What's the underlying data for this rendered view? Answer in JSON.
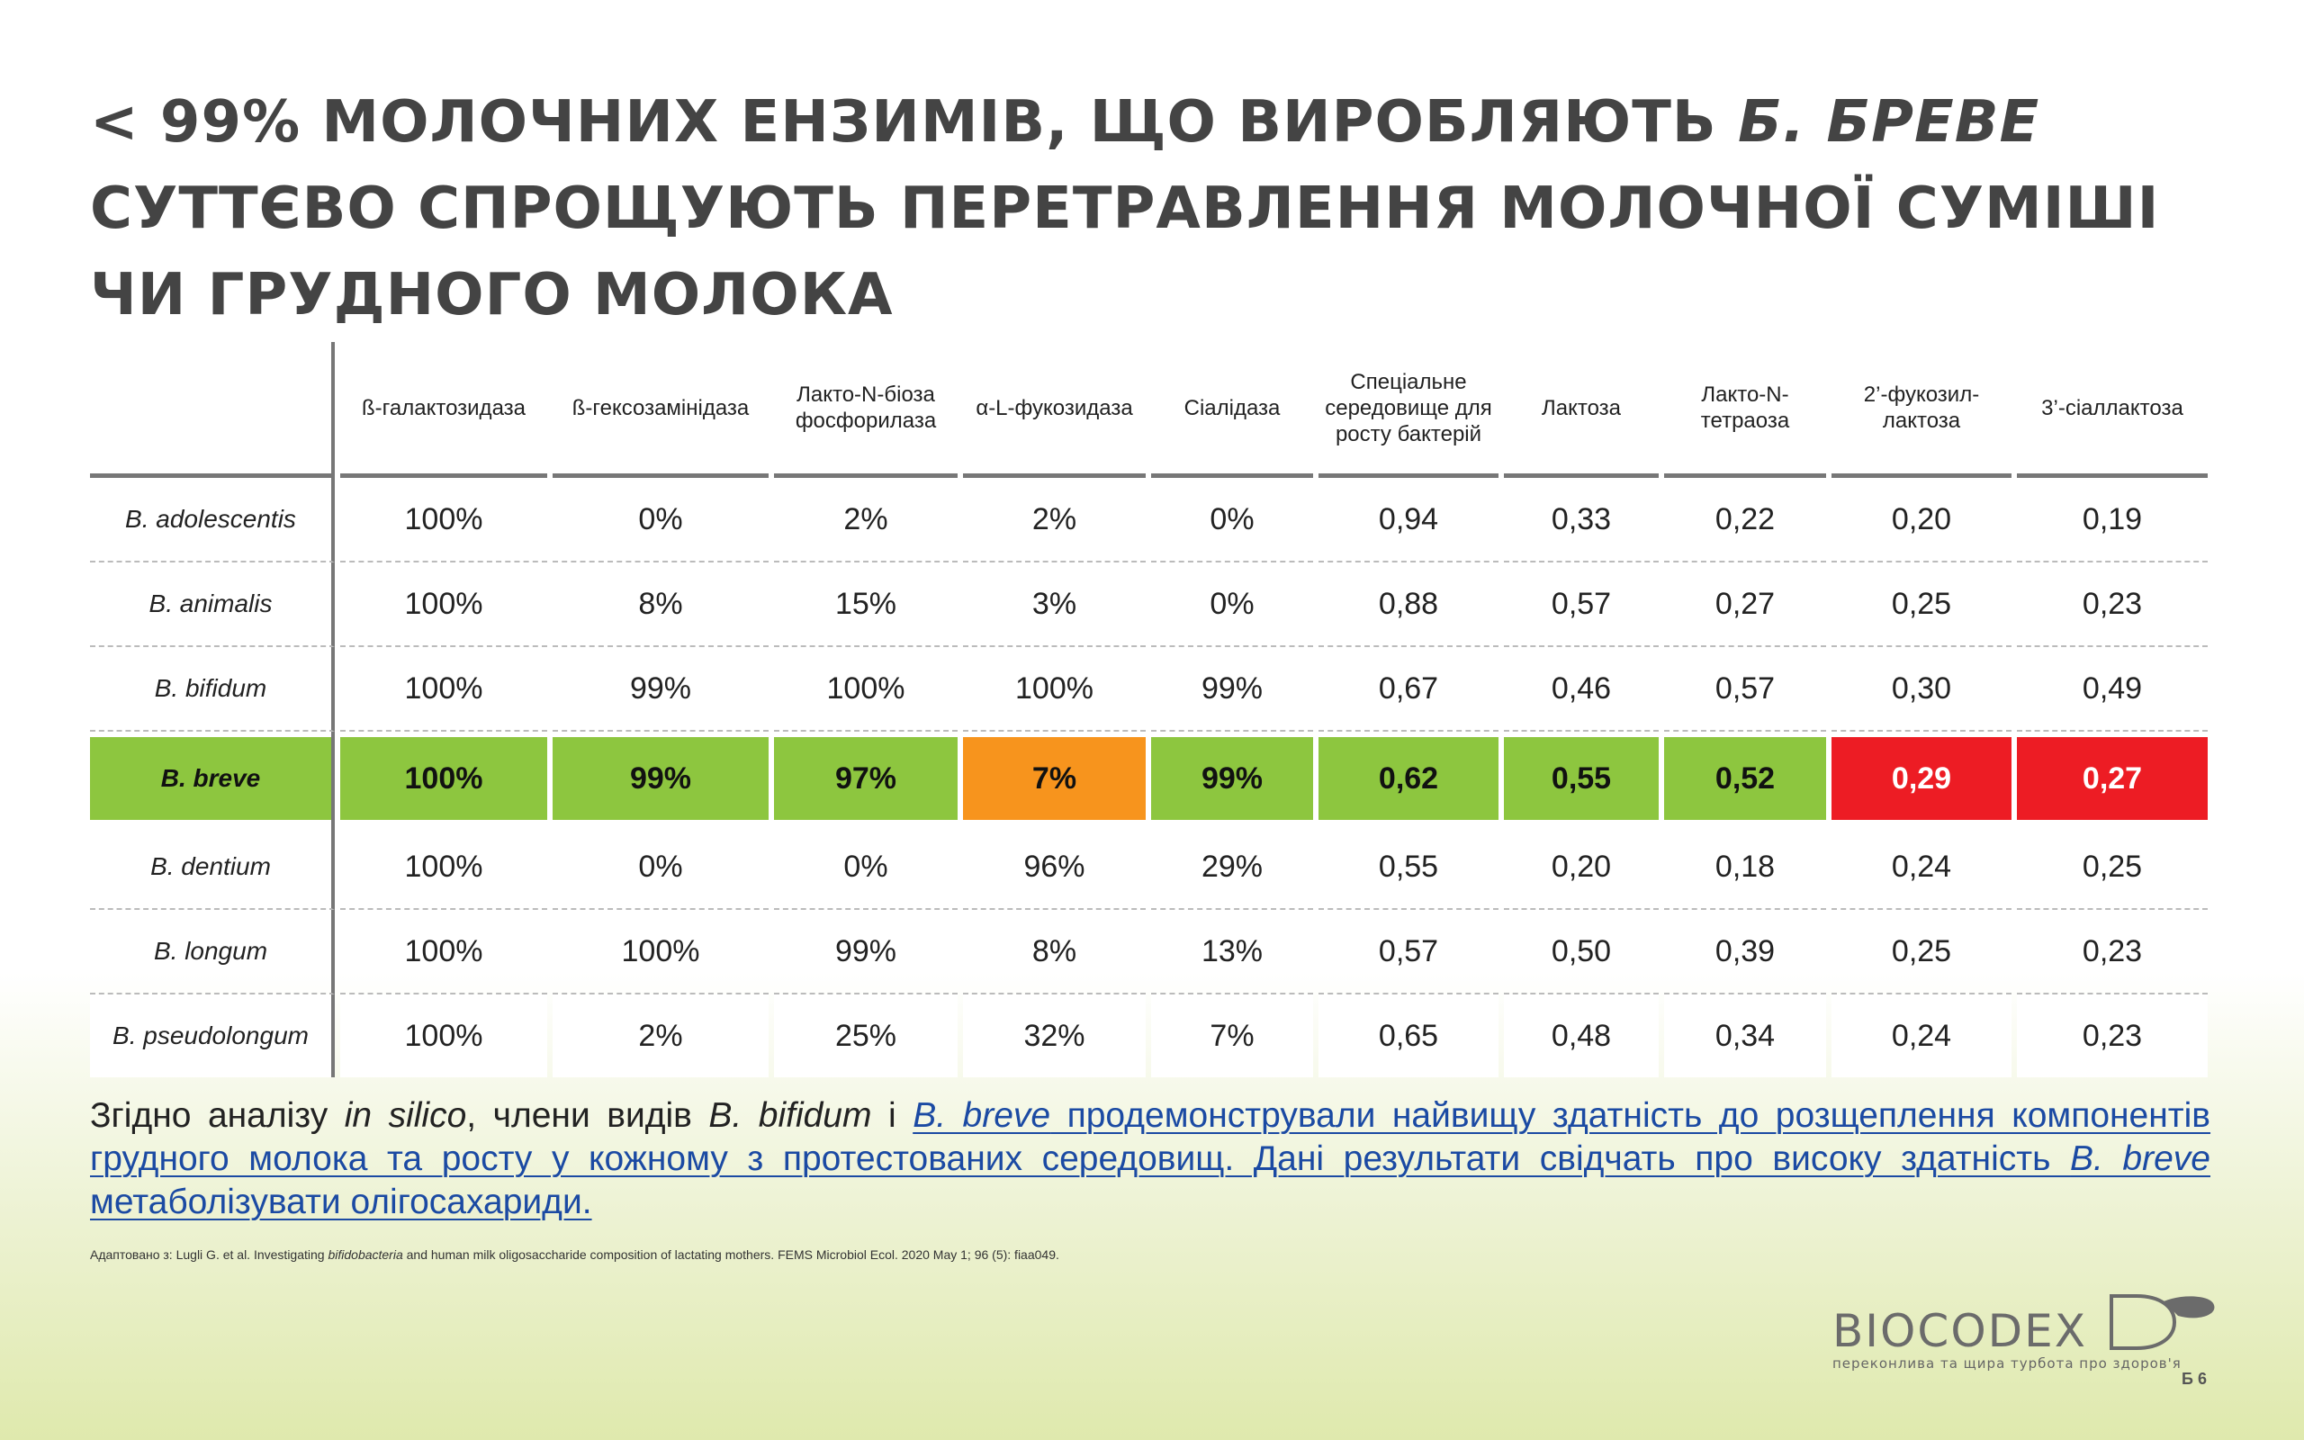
{
  "title": {
    "line1_plain": "< 99% МОЛОЧНИХ ЕНЗИМІВ, ЩО ВИРОБЛЯЮТЬ ",
    "line1_italic": "Б. БРЕВЕ",
    "line2": "СУТТЄВО СПРОЩУЮТЬ ПЕРЕТРАВЛЕННЯ МОЛОЧНОЇ СУМІШІ",
    "line3": "ЧИ ГРУДНОГО МОЛОКА"
  },
  "table": {
    "headers": [
      "ß-галактозидаза",
      "ß-гексозамінідаза",
      "Лакто-N-біоза фосфорилаза",
      "α-L-фукозидаза",
      "Сіалідаза",
      "Спеціальне середовище для росту бактерій",
      "Лактоза",
      "Лакто-N-тетраоза",
      "2’-фукозил-лактоза",
      "3’-сіаллактоза"
    ],
    "rows": [
      {
        "name": "B. adolescentis",
        "values": [
          "100%",
          "0%",
          "2%",
          "2%",
          "0%",
          "0,94",
          "0,33",
          "0,22",
          "0,20",
          "0,19"
        ]
      },
      {
        "name": "B. animalis",
        "values": [
          "100%",
          "8%",
          "15%",
          "3%",
          "0%",
          "0,88",
          "0,57",
          "0,27",
          "0,25",
          "0,23"
        ]
      },
      {
        "name": "B. bifidum",
        "values": [
          "100%",
          "99%",
          "100%",
          "100%",
          "99%",
          "0,67",
          "0,46",
          "0,57",
          "0,30",
          "0,49"
        ]
      },
      {
        "name": "B. breve",
        "values": [
          "100%",
          "99%",
          "97%",
          "7%",
          "99%",
          "0,62",
          "0,55",
          "0,52",
          "0,29",
          "0,27"
        ]
      },
      {
        "name": "B. dentium",
        "values": [
          "100%",
          "0%",
          "0%",
          "96%",
          "29%",
          "0,55",
          "0,20",
          "0,18",
          "0,24",
          "0,25"
        ]
      },
      {
        "name": "B. longum",
        "values": [
          "100%",
          "100%",
          "99%",
          "8%",
          "13%",
          "0,57",
          "0,50",
          "0,39",
          "0,25",
          "0,23"
        ]
      },
      {
        "name": "B. pseudolongum",
        "values": [
          "100%",
          "2%",
          "25%",
          "32%",
          "7%",
          "0,65",
          "0,48",
          "0,34",
          "0,24",
          "0,23"
        ]
      }
    ],
    "highlight_colors": {
      "green": "#8dc63f",
      "orange": "#f7941d",
      "red": "#ed1c24"
    }
  },
  "paragraph": {
    "p1": "Згідно аналізу ",
    "p2": "in silico",
    "p3": ", члени видів ",
    "p4": "B. bifidum",
    "p5": " і ",
    "l1": "B. breve",
    "l2": " продемонстрували найвищу здатність до розщеплення компонентів грудного молока та росту у кожному з протестованих середовищ. Дані результати свідчать про високу здатність ",
    "l3": "B. breve",
    "l4": " метаболізувати олігосахариди."
  },
  "footnote": {
    "a": "Адаптовано з: Lugli G. et al. Investigating ",
    "b": "bifidobacteria",
    "c": " and human milk oligosaccharide composition of lactating mothers. FEMS Microbiol Ecol. 2020 May 1; 96 (5): fiaa049."
  },
  "logo": {
    "name": "BIOCODEX",
    "tagline": "переконлива та щира турбота про здоров'я",
    "color": "#6b6b6b"
  },
  "page_number": "Б 6"
}
